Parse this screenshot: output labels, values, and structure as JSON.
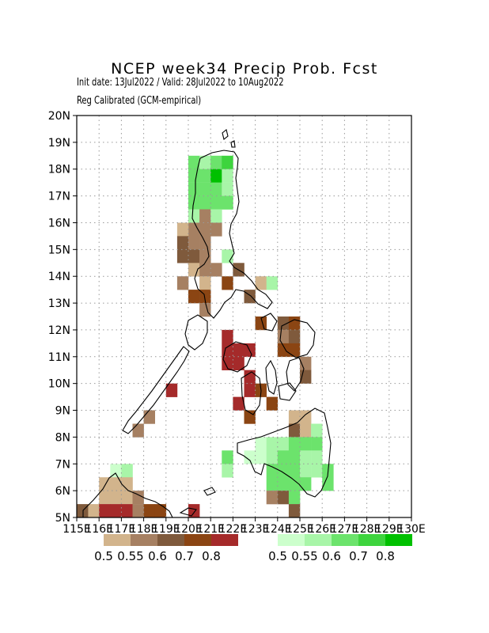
{
  "header": {
    "title": "NCEP week34 Precip Prob. Fcst",
    "subtitle_dates": "Init date: 13Jul2022 / Valid: 28Jul2022 to 10Aug2022",
    "subtitle_method": "Reg Calibrated (GCM-empirical)"
  },
  "axes": {
    "lat_ticks": [
      "5N",
      "6N",
      "7N",
      "8N",
      "9N",
      "10N",
      "11N",
      "12N",
      "13N",
      "14N",
      "15N",
      "16N",
      "17N",
      "18N",
      "19N",
      "20N"
    ],
    "lon_ticks": [
      "115E",
      "116E",
      "117E",
      "118E",
      "119E",
      "120E",
      "121E",
      "122E",
      "123E",
      "124E",
      "125E",
      "126E",
      "127E",
      "128E",
      "129E",
      "130E"
    ]
  },
  "legend": {
    "below_colors": [
      "#d2b48c",
      "#a68062",
      "#7f5a3c",
      "#8b4513",
      "#a52a2a"
    ],
    "below_labels": [
      "0.5",
      "0.55",
      "0.6",
      "0.7",
      "0.8"
    ],
    "above_colors": [
      "#ccffcc",
      "#a8f5a8",
      "#6ce36c",
      "#3ed43e",
      "#00c000"
    ],
    "above_labels": [
      "0.5",
      "0.55",
      "0.6",
      "0.7",
      "0.8"
    ]
  },
  "chart_data": {
    "type": "heatmap",
    "title": "NCEP week34 Precip Prob. Fcst",
    "lon_range": [
      115,
      130
    ],
    "lat_range": [
      5,
      20
    ],
    "grid": true,
    "cell_size_deg": 0.5,
    "note_categories": "b = below-normal probability class index (0:0.5,1:0.55,2:0.6,3:0.7,4:0.8); a = above-normal class index",
    "cells": [
      {
        "lon": 120.25,
        "lat": 18.25,
        "a": 2
      },
      {
        "lon": 120.75,
        "lat": 18.25,
        "a": 1
      },
      {
        "lon": 121.25,
        "lat": 18.25,
        "a": 2
      },
      {
        "lon": 121.75,
        "lat": 18.25,
        "a": 3
      },
      {
        "lon": 120.25,
        "lat": 17.75,
        "a": 2
      },
      {
        "lon": 120.75,
        "lat": 17.75,
        "a": 2
      },
      {
        "lon": 121.25,
        "lat": 17.75,
        "a": 4
      },
      {
        "lon": 121.75,
        "lat": 17.75,
        "a": 1
      },
      {
        "lon": 120.25,
        "lat": 17.25,
        "a": 2
      },
      {
        "lon": 120.75,
        "lat": 17.25,
        "a": 2
      },
      {
        "lon": 121.25,
        "lat": 17.25,
        "a": 2
      },
      {
        "lon": 121.75,
        "lat": 17.25,
        "a": 1
      },
      {
        "lon": 120.25,
        "lat": 16.75,
        "a": 2
      },
      {
        "lon": 120.75,
        "lat": 16.75,
        "a": 2
      },
      {
        "lon": 121.25,
        "lat": 16.75,
        "a": 2
      },
      {
        "lon": 121.75,
        "lat": 16.75,
        "a": 2
      },
      {
        "lon": 120.25,
        "lat": 16.25,
        "a": 1
      },
      {
        "lon": 120.75,
        "lat": 16.25,
        "b": 1
      },
      {
        "lon": 121.25,
        "lat": 16.25,
        "a": 1
      },
      {
        "lon": 120.25,
        "lat": 15.75,
        "b": 1
      },
      {
        "lon": 120.75,
        "lat": 15.75,
        "b": 1
      },
      {
        "lon": 121.25,
        "lat": 15.75,
        "b": 1
      },
      {
        "lon": 119.75,
        "lat": 15.75,
        "b": 0
      },
      {
        "lon": 119.75,
        "lat": 15.25,
        "b": 2
      },
      {
        "lon": 120.25,
        "lat": 15.25,
        "b": 1
      },
      {
        "lon": 120.75,
        "lat": 15.25,
        "b": 1
      },
      {
        "lon": 119.75,
        "lat": 14.75,
        "b": 2
      },
      {
        "lon": 120.25,
        "lat": 14.75,
        "b": 2
      },
      {
        "lon": 120.75,
        "lat": 14.75,
        "b": 1
      },
      {
        "lon": 121.75,
        "lat": 14.75,
        "a": 1
      },
      {
        "lon": 120.25,
        "lat": 14.25,
        "b": 0
      },
      {
        "lon": 120.75,
        "lat": 14.25,
        "b": 1
      },
      {
        "lon": 121.25,
        "lat": 14.25,
        "b": 1
      },
      {
        "lon": 122.25,
        "lat": 14.25,
        "b": 2
      },
      {
        "lon": 119.75,
        "lat": 13.75,
        "b": 1
      },
      {
        "lon": 120.75,
        "lat": 13.75,
        "b": 0
      },
      {
        "lon": 121.75,
        "lat": 13.75,
        "b": 3
      },
      {
        "lon": 123.25,
        "lat": 13.75,
        "b": 0
      },
      {
        "lon": 123.75,
        "lat": 13.75,
        "a": 1
      },
      {
        "lon": 120.25,
        "lat": 13.25,
        "b": 3
      },
      {
        "lon": 120.75,
        "lat": 13.25,
        "b": 3
      },
      {
        "lon": 122.75,
        "lat": 13.25,
        "b": 2
      },
      {
        "lon": 120.75,
        "lat": 12.75,
        "b": 1
      },
      {
        "lon": 123.25,
        "lat": 12.25,
        "b": 3
      },
      {
        "lon": 124.25,
        "lat": 12.25,
        "b": 2
      },
      {
        "lon": 124.75,
        "lat": 12.25,
        "b": 3
      },
      {
        "lon": 121.75,
        "lat": 11.75,
        "b": 4
      },
      {
        "lon": 124.25,
        "lat": 11.75,
        "b": 1
      },
      {
        "lon": 124.75,
        "lat": 11.75,
        "b": 2
      },
      {
        "lon": 121.75,
        "lat": 11.25,
        "b": 4
      },
      {
        "lon": 122.25,
        "lat": 11.25,
        "b": 4
      },
      {
        "lon": 122.75,
        "lat": 11.25,
        "b": 4
      },
      {
        "lon": 124.25,
        "lat": 11.25,
        "b": 3
      },
      {
        "lon": 124.75,
        "lat": 11.25,
        "b": 3
      },
      {
        "lon": 121.75,
        "lat": 10.75,
        "b": 4
      },
      {
        "lon": 122.25,
        "lat": 10.75,
        "b": 4
      },
      {
        "lon": 125.25,
        "lat": 10.75,
        "b": 1
      },
      {
        "lon": 122.75,
        "lat": 10.25,
        "b": 4
      },
      {
        "lon": 125.25,
        "lat": 10.25,
        "b": 2
      },
      {
        "lon": 119.25,
        "lat": 9.75,
        "b": 4
      },
      {
        "lon": 122.75,
        "lat": 9.75,
        "b": 4
      },
      {
        "lon": 123.25,
        "lat": 9.75,
        "b": 3
      },
      {
        "lon": 122.25,
        "lat": 9.25,
        "b": 4
      },
      {
        "lon": 123.75,
        "lat": 9.25,
        "b": 3
      },
      {
        "lon": 118.25,
        "lat": 8.75,
        "b": 1
      },
      {
        "lon": 122.75,
        "lat": 8.75,
        "b": 3
      },
      {
        "lon": 124.75,
        "lat": 8.75,
        "b": 0
      },
      {
        "lon": 125.25,
        "lat": 8.75,
        "b": 0
      },
      {
        "lon": 117.75,
        "lat": 8.25,
        "b": 1
      },
      {
        "lon": 124.75,
        "lat": 8.25,
        "b": 2
      },
      {
        "lon": 125.25,
        "lat": 8.25,
        "b": 0
      },
      {
        "lon": 125.75,
        "lat": 8.25,
        "a": 1
      },
      {
        "lon": 123.25,
        "lat": 7.75,
        "a": 0
      },
      {
        "lon": 123.75,
        "lat": 7.75,
        "a": 1
      },
      {
        "lon": 124.25,
        "lat": 7.75,
        "a": 1
      },
      {
        "lon": 124.75,
        "lat": 7.75,
        "a": 2
      },
      {
        "lon": 125.25,
        "lat": 7.75,
        "a": 2
      },
      {
        "lon": 125.75,
        "lat": 7.75,
        "a": 2
      },
      {
        "lon": 121.75,
        "lat": 7.25,
        "a": 2
      },
      {
        "lon": 122.75,
        "lat": 7.25,
        "a": 0
      },
      {
        "lon": 123.25,
        "lat": 7.25,
        "a": 0
      },
      {
        "lon": 123.75,
        "lat": 7.25,
        "a": 1
      },
      {
        "lon": 124.25,
        "lat": 7.25,
        "a": 2
      },
      {
        "lon": 124.75,
        "lat": 7.25,
        "a": 2
      },
      {
        "lon": 125.25,
        "lat": 7.25,
        "a": 1
      },
      {
        "lon": 125.75,
        "lat": 7.25,
        "a": 1
      },
      {
        "lon": 121.75,
        "lat": 6.75,
        "a": 1
      },
      {
        "lon": 123.75,
        "lat": 6.75,
        "a": 2
      },
      {
        "lon": 124.25,
        "lat": 6.75,
        "a": 2
      },
      {
        "lon": 124.75,
        "lat": 6.75,
        "a": 2
      },
      {
        "lon": 125.25,
        "lat": 6.75,
        "a": 1
      },
      {
        "lon": 125.75,
        "lat": 6.75,
        "a": 1
      },
      {
        "lon": 126.25,
        "lat": 6.75,
        "a": 2
      },
      {
        "lon": 116.75,
        "lat": 6.75,
        "a": 0
      },
      {
        "lon": 117.25,
        "lat": 6.75,
        "a": 1
      },
      {
        "lon": 116.25,
        "lat": 6.25,
        "b": 0
      },
      {
        "lon": 116.75,
        "lat": 6.25,
        "b": 0
      },
      {
        "lon": 117.25,
        "lat": 6.25,
        "b": 0
      },
      {
        "lon": 123.75,
        "lat": 6.25,
        "a": 2
      },
      {
        "lon": 124.25,
        "lat": 6.25,
        "a": 2
      },
      {
        "lon": 124.75,
        "lat": 6.25,
        "a": 2
      },
      {
        "lon": 125.25,
        "lat": 6.25,
        "a": 2
      },
      {
        "lon": 126.25,
        "lat": 6.25,
        "a": 2
      },
      {
        "lon": 116.25,
        "lat": 5.75,
        "b": 0
      },
      {
        "lon": 116.75,
        "lat": 5.75,
        "b": 0
      },
      {
        "lon": 117.25,
        "lat": 5.75,
        "b": 0
      },
      {
        "lon": 117.75,
        "lat": 5.75,
        "b": 1
      },
      {
        "lon": 123.75,
        "lat": 5.75,
        "b": 1
      },
      {
        "lon": 124.25,
        "lat": 5.75,
        "b": 2
      },
      {
        "lon": 124.75,
        "lat": 5.75,
        "a": 2
      },
      {
        "lon": 115.75,
        "lat": 5.25,
        "b": 0
      },
      {
        "lon": 116.25,
        "lat": 5.25,
        "b": 4
      },
      {
        "lon": 116.75,
        "lat": 5.25,
        "b": 4
      },
      {
        "lon": 117.25,
        "lat": 5.25,
        "b": 4
      },
      {
        "lon": 117.75,
        "lat": 5.25,
        "b": 1
      },
      {
        "lon": 118.25,
        "lat": 5.25,
        "b": 3
      },
      {
        "lon": 118.75,
        "lat": 5.25,
        "b": 3
      },
      {
        "lon": 120.25,
        "lat": 5.25,
        "b": 4
      },
      {
        "lon": 124.75,
        "lat": 5.25,
        "b": 2
      },
      {
        "lon": 115.25,
        "lat": 5.25,
        "b": 2
      }
    ]
  }
}
